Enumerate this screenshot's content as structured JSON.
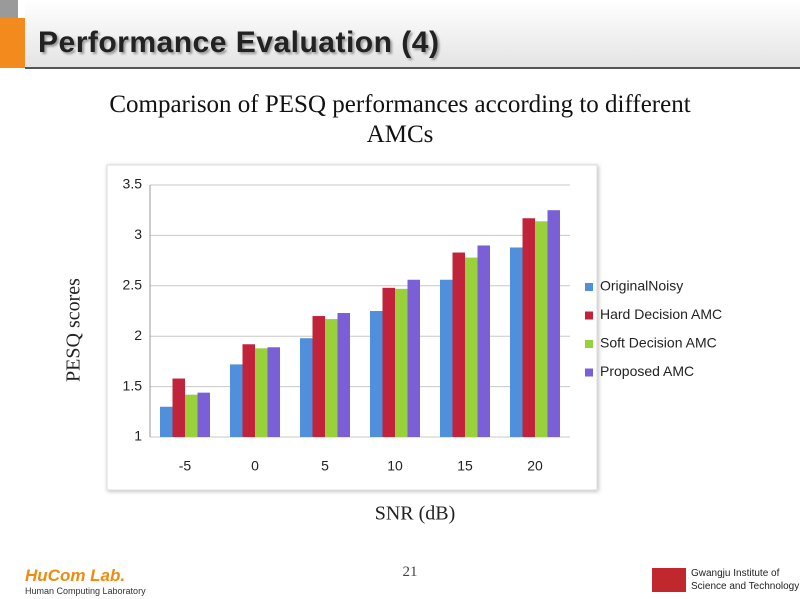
{
  "slide_title": "Performance Evaluation (4)",
  "page_number": "21",
  "footer": {
    "lab_name": "HuCom Lab.",
    "lab_full": "Human Computing Laboratory",
    "institute_line1": "Gwangju Institute of",
    "institute_line2": "Science and Technology"
  },
  "chart_data": {
    "type": "bar",
    "title": "Comparison of PESQ performances according to different AMCs",
    "x_label": "SNR (dB)",
    "y_label": "PESQ scores",
    "categories": [
      "-5",
      "0",
      "5",
      "10",
      "15",
      "20"
    ],
    "series": [
      {
        "name": "OriginalNoisy",
        "color": "#4f8fdc",
        "values": [
          1.3,
          1.72,
          1.98,
          2.25,
          2.56,
          2.88
        ]
      },
      {
        "name": "Hard Decision AMC",
        "color": "#c0233a",
        "values": [
          1.58,
          1.92,
          2.2,
          2.48,
          2.83,
          3.17
        ]
      },
      {
        "name": "Soft Decision AMC",
        "color": "#99d13b",
        "values": [
          1.42,
          1.88,
          2.17,
          2.47,
          2.78,
          3.14
        ]
      },
      {
        "name": "Proposed AMC",
        "color": "#7b5fd6",
        "values": [
          1.44,
          1.89,
          2.23,
          2.56,
          2.9,
          3.25
        ]
      }
    ],
    "ylim": [
      1,
      3.5
    ],
    "yticks": [
      1,
      1.5,
      2,
      2.5,
      3,
      3.5
    ],
    "grid": true,
    "legend": "right"
  }
}
